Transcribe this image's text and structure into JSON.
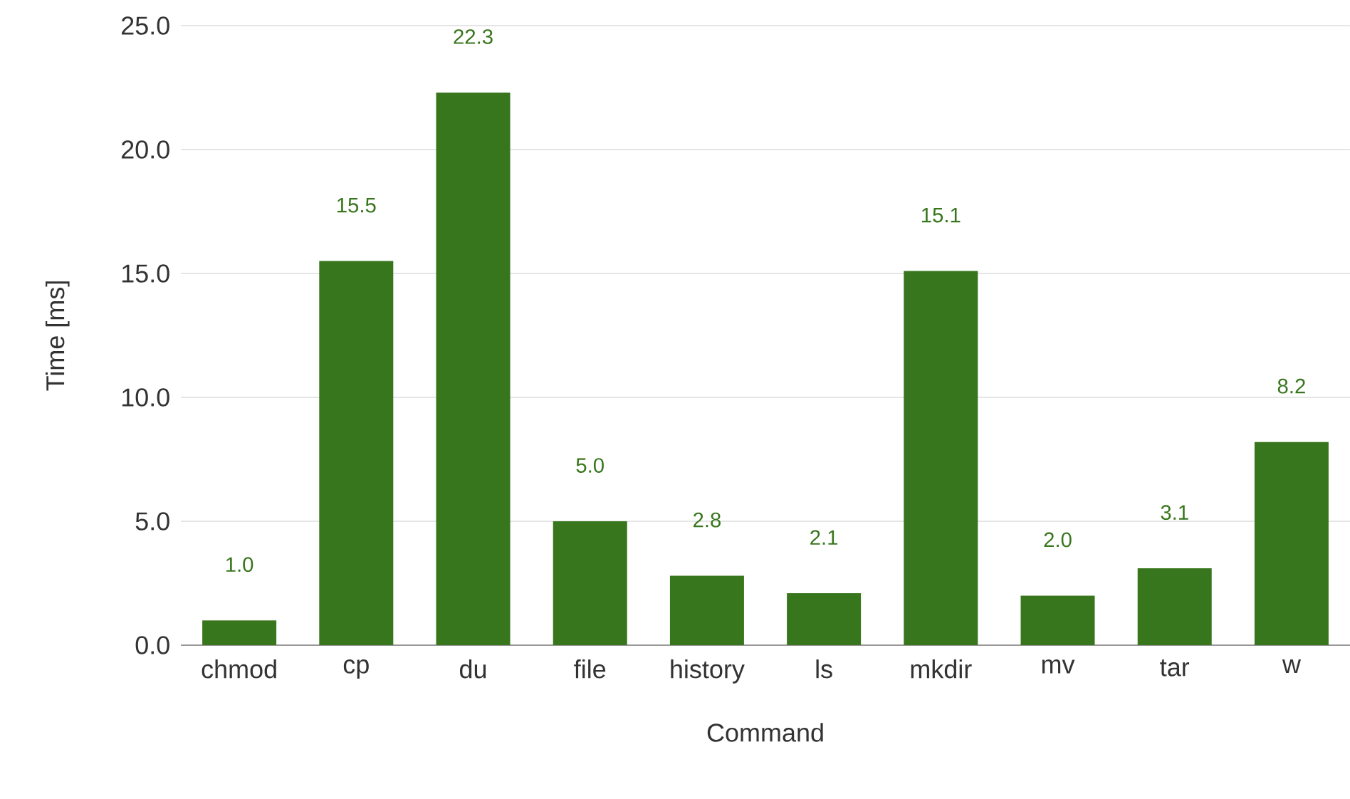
{
  "chart_data": {
    "type": "bar",
    "xlabel": "Command",
    "ylabel": "Time [ms]",
    "categories": [
      "chmod",
      "cp",
      "du",
      "file",
      "history",
      "ls",
      "mkdir",
      "mv",
      "tar",
      "w"
    ],
    "values": [
      1.0,
      15.5,
      22.3,
      5.0,
      2.8,
      2.1,
      15.1,
      2.0,
      3.1,
      8.2
    ],
    "value_labels": [
      "1.0",
      "15.5",
      "22.3",
      "5.0",
      "2.8",
      "2.1",
      "15.1",
      "2.0",
      "3.1",
      "8.2"
    ],
    "color": "#38761d",
    "ylim": [
      0,
      25
    ],
    "yticks": [
      {
        "value": 0,
        "label": "0.0"
      },
      {
        "value": 5,
        "label": "5.0"
      },
      {
        "value": 10,
        "label": "10.0"
      },
      {
        "value": 15,
        "label": "15.0"
      },
      {
        "value": 20,
        "label": "20.0"
      },
      {
        "value": 25,
        "label": "25.0"
      }
    ],
    "grid": "y"
  }
}
